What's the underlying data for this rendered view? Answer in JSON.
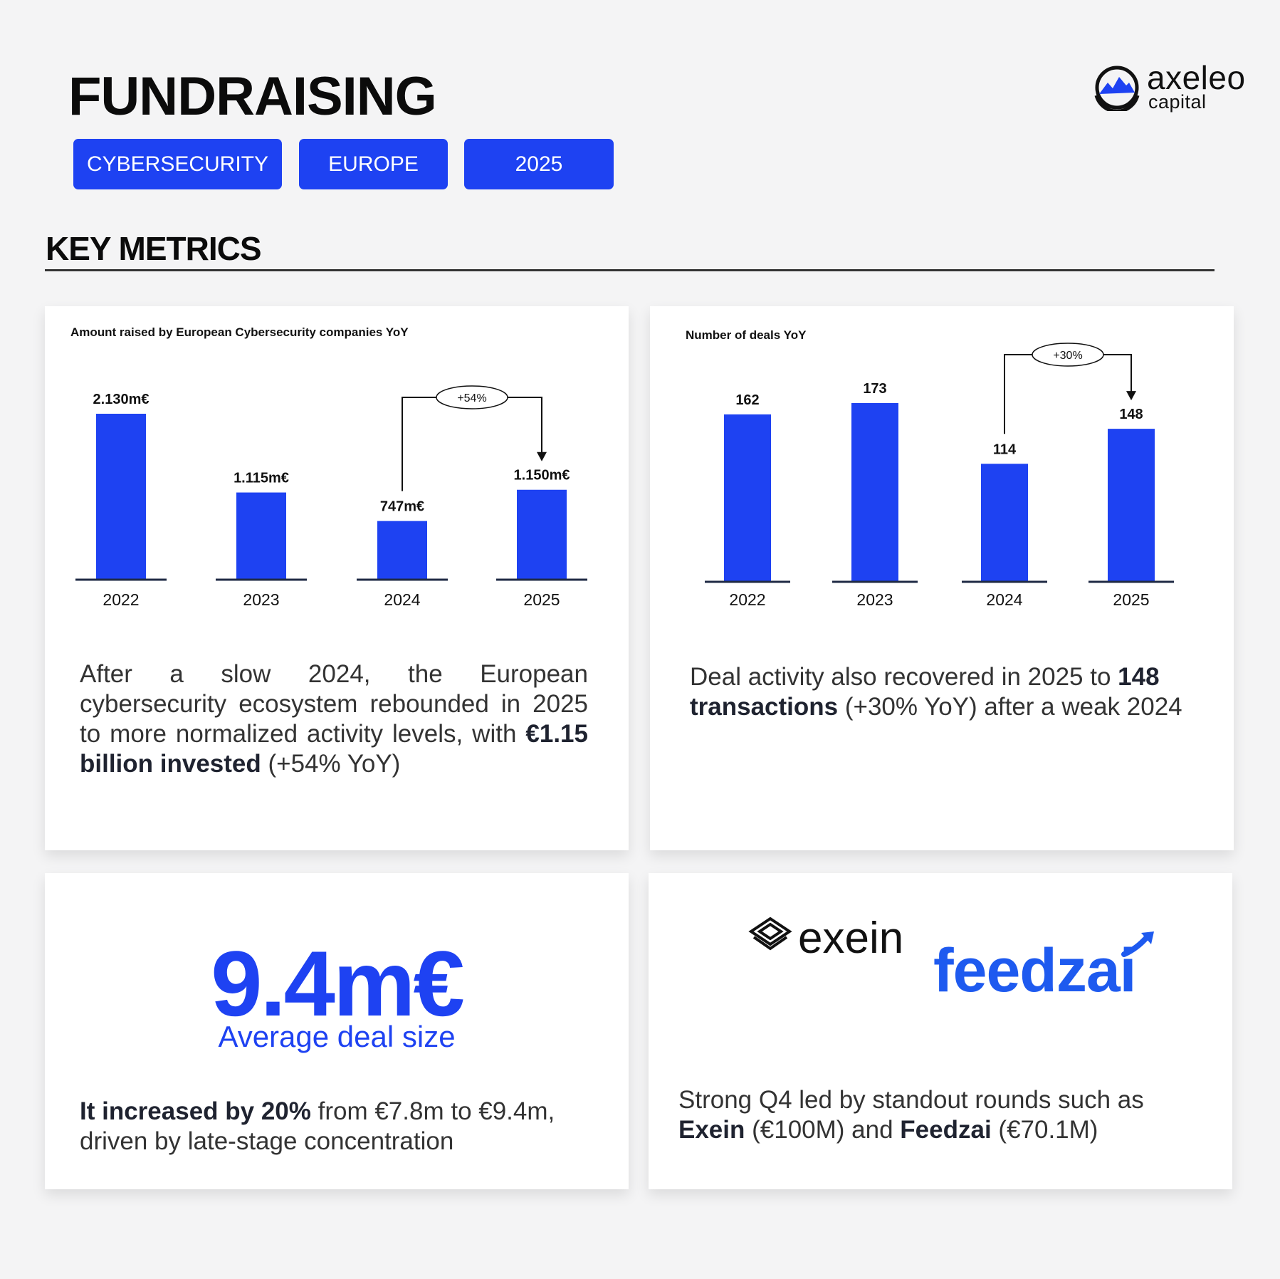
{
  "header": {
    "title": "FUNDRAISING",
    "logo": {
      "main": "axeleo",
      "sub": "capital"
    },
    "tags": [
      "CYBERSECURITY",
      "EUROPE",
      "2025"
    ]
  },
  "section": {
    "title": "KEY METRICS"
  },
  "colors": {
    "accent": "#1e42f2",
    "feedzai": "#1e5aef"
  },
  "chart_data": [
    {
      "type": "bar",
      "title": "Amount raised by European Cybersecurity companies YoY",
      "categories": [
        "2022",
        "2023",
        "2024",
        "2025"
      ],
      "values": [
        2130,
        1115,
        747,
        1150
      ],
      "value_labels": [
        "2.130m€",
        "1.115m€",
        "747m€",
        "1.150m€"
      ],
      "annotation": {
        "text": "+54%",
        "from": "2024",
        "to": "2025"
      },
      "grid": false
    },
    {
      "type": "bar",
      "title": "Number of deals YoY",
      "categories": [
        "2022",
        "2023",
        "2024",
        "2025"
      ],
      "values": [
        162,
        173,
        114,
        148
      ],
      "value_labels": [
        "162",
        "173",
        "114",
        "148"
      ],
      "annotation": {
        "text": "+30%",
        "from": "2024",
        "to": "2025"
      },
      "grid": false
    }
  ],
  "cards": {
    "amount": {
      "desc_pre": "After a slow 2024, the European cybersecurity ecosystem rebounded in 2025 to more normalized activity levels, with ",
      "desc_bold": "€1.15 billion invested",
      "desc_post": " (+54% YoY)"
    },
    "deals": {
      "desc_pre": "Deal activity also recovered in 2025 to ",
      "desc_bold": "148 transactions",
      "desc_post": " (+30% YoY) after a weak 2024"
    },
    "avg": {
      "number": "9.4m€",
      "label": "Average deal size",
      "desc_bold": "It increased by 20%",
      "desc_post": " from €7.8m to €9.4m, driven by late-stage concentration"
    },
    "rounds": {
      "logo1": "exein",
      "logo2": "feedzai",
      "desc_pre": "Strong Q4 led by standout rounds such as ",
      "bold1": "Exein",
      "mid": " (€100M) and ",
      "bold2": "Feedzai",
      "post": " (€70.1M)"
    }
  }
}
